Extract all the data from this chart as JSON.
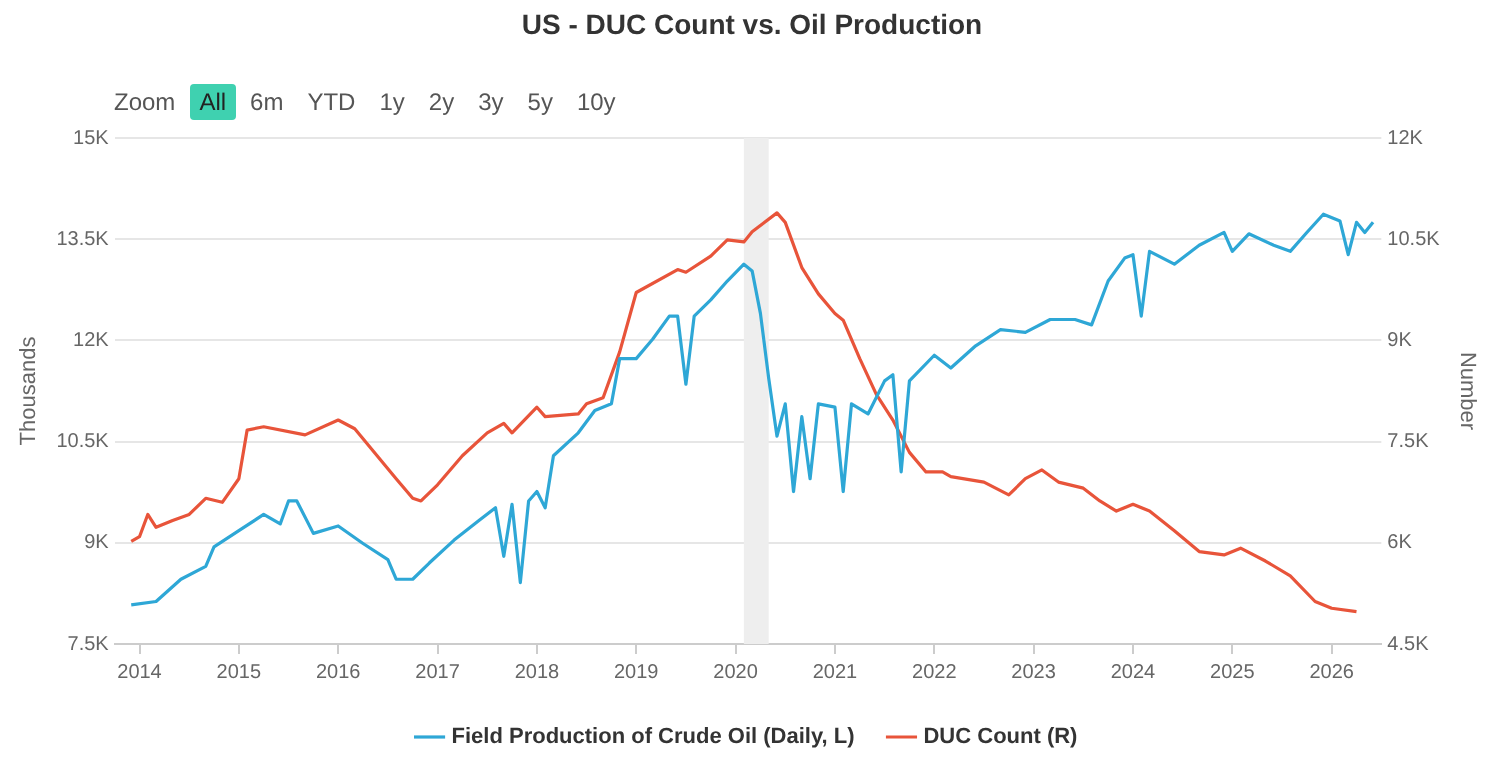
{
  "chart_data": {
    "type": "line",
    "title": "US - DUC Count vs. Oil Production",
    "ylabel": "Thousands",
    "y2label": "Number",
    "annotations": [
      "Zoom",
      "All",
      "6m",
      "YTD",
      "1y",
      "2y",
      "3y",
      "5y",
      "10y"
    ],
    "xlim": [
      "2013-10",
      "2026-07"
    ],
    "xticks": [
      "2014",
      "2015",
      "2016",
      "2017",
      "2018",
      "2019",
      "2020",
      "2021",
      "2022",
      "2023",
      "2024",
      "2025",
      "2026"
    ],
    "ylim": [
      7500,
      15000
    ],
    "yticks": [
      {
        "value": 7500,
        "label": "7.5K"
      },
      {
        "value": 9000,
        "label": "9K"
      },
      {
        "value": 10500,
        "label": "10.5K"
      },
      {
        "value": 12000,
        "label": "12K"
      },
      {
        "value": 13500,
        "label": "13.5K"
      },
      {
        "value": 15000,
        "label": "15K"
      }
    ],
    "y2lim": [
      4500,
      12000
    ],
    "y2ticks": [
      {
        "value": 4500,
        "label": "4.5K"
      },
      {
        "value": 6000,
        "label": "6K"
      },
      {
        "value": 7500,
        "label": "7.5K"
      },
      {
        "value": 9000,
        "label": "9K"
      },
      {
        "value": 10500,
        "label": "10.5K"
      },
      {
        "value": 12000,
        "label": "12K"
      }
    ],
    "grid": "y",
    "legend": "bottom",
    "marker": "none",
    "line_style": "solid",
    "bands": [
      {
        "axis": "x",
        "from": "2020-02",
        "to": "2020-05",
        "color": "#eeeeee"
      }
    ],
    "series": [
      {
        "name": "Field Production of Crude Oil (Daily, L)",
        "color": "#2ea7d6",
        "x": [
          "2013-12",
          "2014-03",
          "2014-06",
          "2014-09",
          "2014-10",
          "2015-01",
          "2015-04",
          "2015-06",
          "2015-07",
          "2015-08",
          "2015-10",
          "2016-01",
          "2016-04",
          "2016-07",
          "2016-08",
          "2016-10",
          "2016-12",
          "2017-03",
          "2017-06",
          "2017-08",
          "2017-09",
          "2017-10",
          "2017-11",
          "2017-12",
          "2018-01",
          "2018-02",
          "2018-03",
          "2018-06",
          "2018-08",
          "2018-10",
          "2018-11",
          "2019-01",
          "2019-03",
          "2019-05",
          "2019-06",
          "2019-07",
          "2019-08",
          "2019-10",
          "2019-12",
          "2020-02",
          "2020-03",
          "2020-04",
          "2020-05",
          "2020-06",
          "2020-07",
          "2020-08",
          "2020-09",
          "2020-10",
          "2020-11",
          "2021-01",
          "2021-02",
          "2021-03",
          "2021-05",
          "2021-07",
          "2021-08",
          "2021-09",
          "2021-10",
          "2022-01",
          "2022-03",
          "2022-06",
          "2022-09",
          "2022-12",
          "2023-03",
          "2023-06",
          "2023-08",
          "2023-10",
          "2023-12",
          "2024-01",
          "2024-02",
          "2024-03",
          "2024-06",
          "2024-09",
          "2024-12",
          "2025-01",
          "2025-03",
          "2025-06",
          "2025-08",
          "2025-10",
          "2025-12",
          "2026-02",
          "2026-03",
          "2026-04",
          "2026-05",
          "2026-06"
        ],
        "values": [
          8080,
          8130,
          8460,
          8650,
          8940,
          9180,
          9420,
          9280,
          9620,
          9620,
          9140,
          9250,
          8990,
          8750,
          8460,
          8460,
          8700,
          9040,
          9330,
          9520,
          8800,
          9570,
          8410,
          9620,
          9760,
          9520,
          10290,
          10630,
          10960,
          11060,
          11730,
          11730,
          12020,
          12360,
          12360,
          11350,
          12360,
          12600,
          12880,
          13130,
          13030,
          12400,
          11440,
          10580,
          11060,
          9760,
          10870,
          9950,
          11060,
          11010,
          9760,
          11060,
          10910,
          11400,
          11490,
          10050,
          11400,
          11780,
          11590,
          11920,
          12160,
          12120,
          12310,
          12310,
          12230,
          12880,
          13220,
          13270,
          12360,
          13320,
          13130,
          13410,
          13600,
          13320,
          13580,
          13410,
          13320,
          13600,
          13870,
          13770,
          13270,
          13750,
          13600,
          13750
        ]
      },
      {
        "name": "DUC Count (R)",
        "color": "#e8543a",
        "axis": "y2",
        "x": [
          "2013-12",
          "2014-01",
          "2014-02",
          "2014-03",
          "2014-05",
          "2014-07",
          "2014-09",
          "2014-11",
          "2015-01",
          "2015-02",
          "2015-04",
          "2015-09",
          "2016-01",
          "2016-03",
          "2016-08",
          "2016-10",
          "2016-11",
          "2017-01",
          "2017-04",
          "2017-07",
          "2017-09",
          "2017-10",
          "2018-01",
          "2018-02",
          "2018-06",
          "2018-07",
          "2018-09",
          "2018-11",
          "2019-01",
          "2019-06",
          "2019-07",
          "2019-10",
          "2019-12",
          "2020-02",
          "2020-03",
          "2020-06",
          "2020-07",
          "2020-09",
          "2020-11",
          "2021-01",
          "2021-02",
          "2021-04",
          "2021-06",
          "2021-08",
          "2021-10",
          "2021-12",
          "2022-02",
          "2022-03",
          "2022-07",
          "2022-10",
          "2022-12",
          "2023-02",
          "2023-04",
          "2023-07",
          "2023-09",
          "2023-11",
          "2024-01",
          "2024-03",
          "2024-06",
          "2024-09",
          "2024-12",
          "2025-02",
          "2025-05",
          "2025-08",
          "2025-11",
          "2026-01",
          "2026-04"
        ],
        "values": [
          6020,
          6090,
          6420,
          6230,
          6330,
          6420,
          6660,
          6600,
          6950,
          7670,
          7720,
          7600,
          7820,
          7690,
          6950,
          6660,
          6620,
          6860,
          7290,
          7630,
          7770,
          7630,
          8010,
          7870,
          7910,
          8060,
          8150,
          8830,
          9710,
          10050,
          10010,
          10250,
          10490,
          10460,
          10610,
          10890,
          10750,
          10080,
          9690,
          9400,
          9300,
          8730,
          8200,
          7820,
          7340,
          7050,
          7050,
          6980,
          6900,
          6710,
          6950,
          7080,
          6900,
          6810,
          6620,
          6470,
          6570,
          6470,
          6180,
          5870,
          5820,
          5920,
          5730,
          5510,
          5130,
          5030,
          4980
        ]
      }
    ]
  }
}
